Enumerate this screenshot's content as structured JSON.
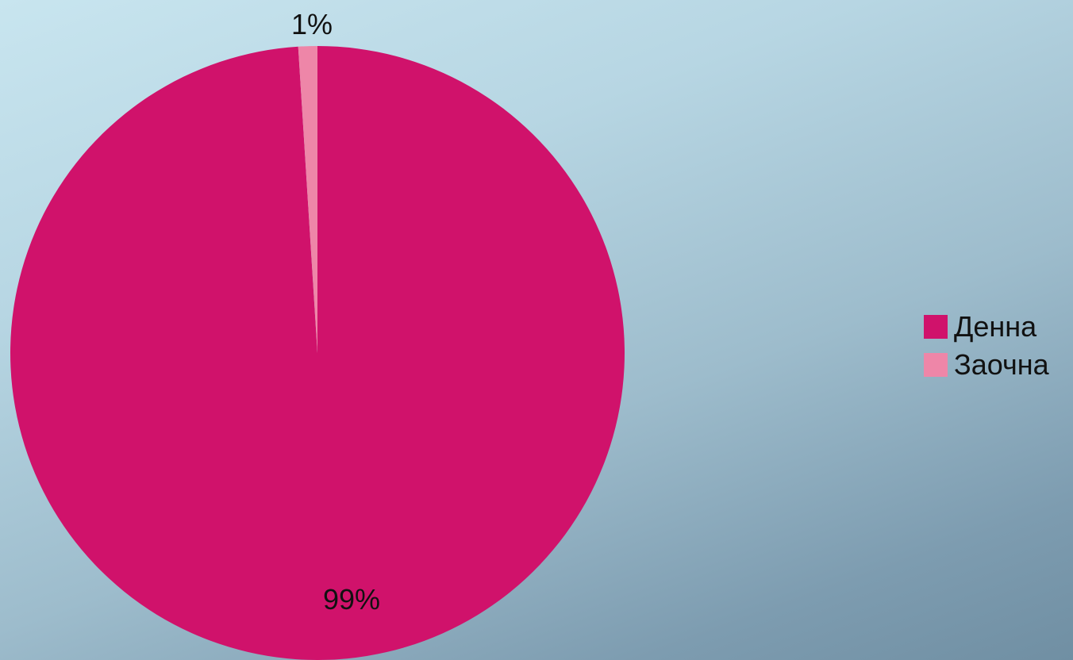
{
  "chart_data": {
    "type": "pie",
    "categories": [
      "Денна",
      "Заочна"
    ],
    "values": [
      99,
      1
    ],
    "data_labels": [
      "99%",
      "1%"
    ],
    "colors": [
      "#d0126b",
      "#ee86a8"
    ],
    "legend_position": "right",
    "start_angle_deg": 0,
    "direction": "clockwise"
  }
}
